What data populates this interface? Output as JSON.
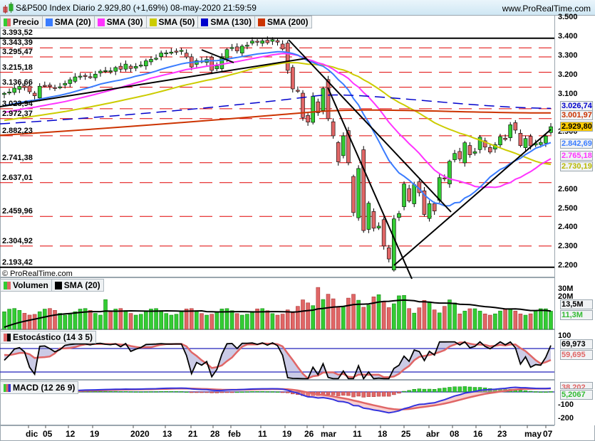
{
  "header": {
    "title": "S&P500 Index Diario 2.929,80 (+1,69%) 08-may-2020 21:59:59",
    "site": "www.ProRealTime.com"
  },
  "legend_price": [
    {
      "label": "Precio",
      "color": "#e06666",
      "color2": "#33cc33"
    },
    {
      "label": "SMA (20)",
      "color": "#3a7cff"
    },
    {
      "label": "SMA (30)",
      "color": "#ff33ff"
    },
    {
      "label": "SMA (50)",
      "color": "#cccc00"
    },
    {
      "label": "SMA (130)",
      "color": "#0000cc"
    },
    {
      "label": "SMA (200)",
      "color": "#cc3300"
    }
  ],
  "legend_volume": [
    {
      "label": "Volumen",
      "color": "#e06666",
      "color2": "#33cc33"
    },
    {
      "label": "SMA (20)",
      "color": "#000000"
    }
  ],
  "legend_stoch": [
    {
      "label": "Estocástico (14 3 5)",
      "color": "#000000",
      "color2": "#e06666"
    }
  ],
  "legend_macd": [
    {
      "label": "MACD (12 26 9)",
      "color": "#33cc33",
      "color2": "#e06666",
      "color3": "#3333cc"
    }
  ],
  "copyright": "© ProRealTime.com",
  "levels": [
    "3.393,52",
    "3.343,39",
    "3.295,47",
    "3.215,18",
    "3.136,66",
    "3.023,94",
    "2.972,37",
    "2.882,23",
    "2.741,38",
    "2.637,01",
    "2.459,96",
    "2.304,92",
    "2.193,42"
  ],
  "price_axis": [
    "3.500",
    "3.400",
    "3.300",
    "3.200",
    "3.100",
    "2.900",
    "2.600",
    "2.500",
    "2.400",
    "2.300",
    "2.200"
  ],
  "badges": {
    "sma130": "3.026,74",
    "sma200": "3.001,97",
    "close": "2.929,80",
    "sma20": "2.842,69",
    "sma30": "2.765,18",
    "sma50": "2.730,19",
    "vol_sma": "13,5M",
    "vol": "11,3M",
    "stoch_k": "69,973",
    "stoch_d": "59,695",
    "macd_signal": "38,202",
    "macd_hist": "5,2067"
  },
  "volume_axis": [
    "30M",
    "20M"
  ],
  "stoch_axis": [
    "100"
  ],
  "macd_axis": [
    "-100",
    "-200"
  ],
  "x_axis": [
    "dic",
    "05",
    "12",
    "19",
    "2020",
    "13",
    "21",
    "28",
    "feb",
    "11",
    "19",
    "26",
    "mar",
    "11",
    "18",
    "25",
    "abr",
    "08",
    "16",
    "23",
    "may",
    "07"
  ],
  "chart_data": {
    "type": "candlestick",
    "title": "S&P500 Index Diario",
    "last_close": 2929.8,
    "change_pct": 1.69,
    "date": "08-may-2020",
    "ylim": [
      2150,
      3500
    ],
    "y_ticks": [
      3500,
      3400,
      3300,
      3200,
      3100,
      2900,
      2600,
      2500,
      2400,
      2300,
      2200
    ],
    "horizontal_levels": [
      3393.52,
      3343.39,
      3295.47,
      3215.18,
      3136.66,
      3023.94,
      2972.37,
      2882.23,
      2741.38,
      2637.01,
      2459.96,
      2304.92,
      2193.42
    ],
    "moving_averages_last": {
      "SMA20": 2842.69,
      "SMA30": 2765.18,
      "SMA50": 2730.19,
      "SMA130": 3026.74,
      "SMA200": 3001.97
    },
    "x_tick_labels": [
      "dic 05",
      "12",
      "19",
      "2020",
      "13",
      "21",
      "28",
      "feb",
      "11",
      "19",
      "26 mar",
      "11",
      "18",
      "25",
      "abr",
      "08",
      "16",
      "23",
      "may 07"
    ],
    "closes_approx": [
      3105,
      3112,
      3132,
      3141,
      3135,
      3113,
      3092,
      3142,
      3146,
      3141,
      3135,
      3139,
      3157,
      3176,
      3191,
      3195,
      3195,
      3192,
      3205,
      3221,
      3224,
      3223,
      3240,
      3231,
      3258,
      3235,
      3246,
      3253,
      3275,
      3283,
      3289,
      3316,
      3317,
      3321,
      3325,
      3330,
      3295,
      3243,
      3276,
      3273,
      3283,
      3225,
      3248,
      3297,
      3334,
      3345,
      3327,
      3352,
      3357,
      3379,
      3373,
      3380,
      3370,
      3386,
      3373,
      3337,
      3225,
      3128,
      3116,
      2978,
      2954,
      3090,
      3003,
      3130,
      2972,
      2882,
      2746,
      2882,
      2741,
      2480,
      2711,
      2386,
      2529,
      2398,
      2409,
      2305,
      2237,
      2447,
      2475,
      2630,
      2541,
      2626,
      2584,
      2470,
      2527,
      2488,
      2663,
      2659,
      2749,
      2790,
      2761,
      2846,
      2783,
      2799,
      2875,
      2823,
      2797,
      2836,
      2878,
      2863,
      2940,
      2912,
      2831,
      2868,
      2830,
      2842,
      2848,
      2881,
      2930
    ],
    "volume": {
      "ylabel": "Volumen",
      "last": "11,3M",
      "sma20_last": "13,5M",
      "y_ticks": [
        "30M",
        "20M"
      ]
    },
    "stochastic": {
      "params": "14 3 5",
      "k_last": 69.973,
      "d_last": 59.695,
      "levels": [
        80,
        20
      ]
    },
    "macd": {
      "params": "12 26 9",
      "signal_last": 38.202,
      "histogram_last": 5.2067,
      "y_ticks": [
        -100,
        -200
      ]
    }
  }
}
